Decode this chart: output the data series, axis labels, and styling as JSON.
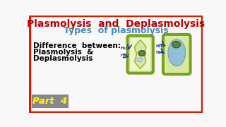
{
  "title1": "Plasmolysis  and  Deplasmolysis",
  "title2": "Types  of plasmolysis",
  "subtitle_line1": "Difference  between:",
  "subtitle_line2": "Plasmolysis  &",
  "subtitle_line3": "Deplasmolysis",
  "part_label": "Part  4",
  "title1_color": "#bb0000",
  "title2_color": "#4488bb",
  "subtitle_color": "#000000",
  "part_bg": "#888888",
  "part_text_color": "#ffff00",
  "bg_color": "#f8f8f8",
  "border_color": "#cc2200",
  "cell_wall_color": "#7aa020",
  "cell_wall_inner_color": "#c8dc70",
  "cell_bg_color": "#eef5cc",
  "plasmolyzed_mem_color": "#d8e8a0",
  "plasmolyzed_mem_edge": "#a0b840",
  "nucleus_color": "#5a8840",
  "nucleus_edge": "#3a6020",
  "vacuole1_color": "#b8d8e8",
  "vacuole2_color": "#88bbdd",
  "vacuole2_edge": "#6699bb",
  "h2o_color": "#224488",
  "arrow_color": "#1a4488"
}
